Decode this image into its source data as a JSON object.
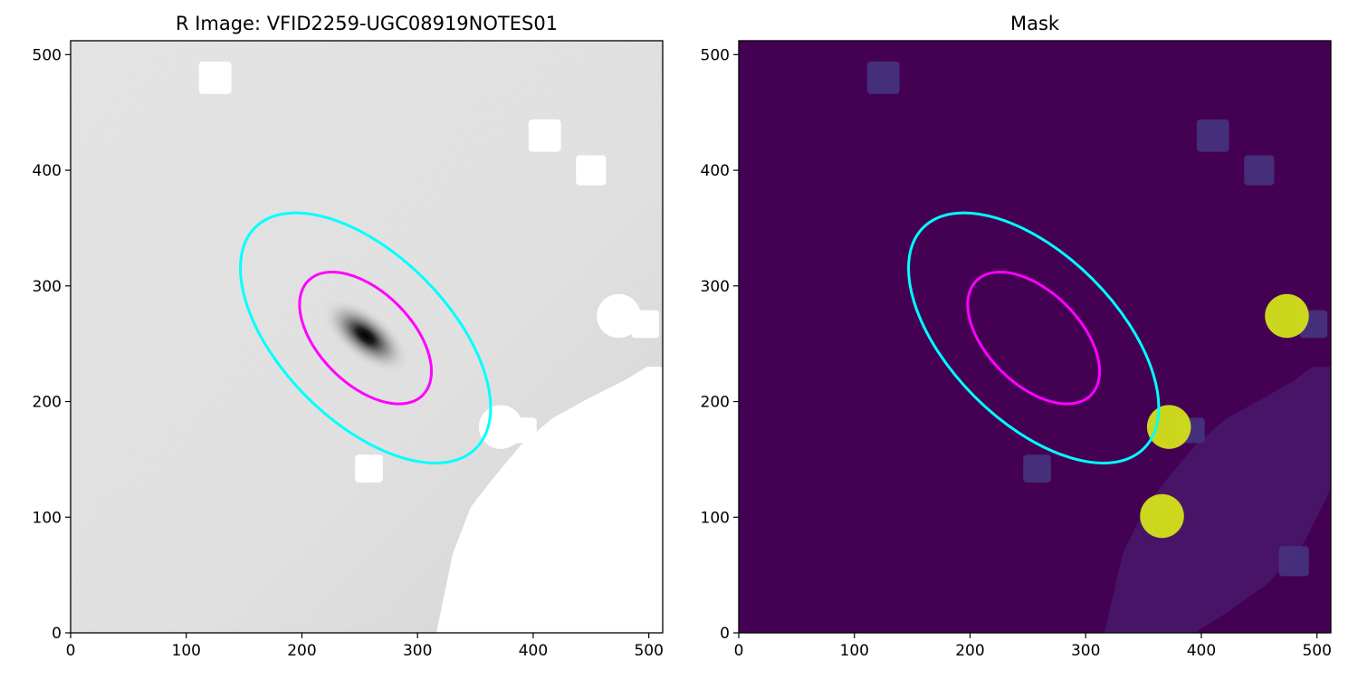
{
  "colors": {
    "cyan_ellipse": "#00ffff",
    "magenta_ellipse": "#ff00ff",
    "mask_background": "#440154",
    "mask_star_yellow": "#d4e21a",
    "mask_box_purple": "#46337e",
    "mask_stripe": "#481467"
  },
  "chart_data": [
    {
      "type": "image",
      "title": "R Image: VFID2259-UGC08919NOTES01",
      "colormap": "gray_r",
      "xlim": [
        0,
        512
      ],
      "ylim": [
        0,
        512
      ],
      "xticks": [
        0,
        100,
        200,
        300,
        400,
        500
      ],
      "yticks": [
        0,
        100,
        200,
        300,
        400,
        500
      ],
      "ellipses": [
        {
          "name": "outer",
          "color": "cyan",
          "center": [
            255,
            255
          ],
          "semi_axes": [
            135,
            72
          ],
          "angle_deg": -45
        },
        {
          "name": "inner",
          "color": "magenta",
          "center": [
            255,
            255
          ],
          "semi_axes": [
            70,
            40
          ],
          "angle_deg": -45
        }
      ],
      "masked_regions": [
        {
          "shape": "box",
          "center": [
            125,
            480
          ],
          "size": 28
        },
        {
          "shape": "box",
          "center": [
            410,
            430
          ],
          "size": 28
        },
        {
          "shape": "box",
          "center": [
            450,
            400
          ],
          "size": 26
        },
        {
          "shape": "box",
          "center": [
            258,
            142
          ],
          "size": 24
        },
        {
          "shape": "box",
          "center": [
            480,
            62
          ],
          "size": 26
        },
        {
          "shape": "box",
          "center": [
            497,
            267
          ],
          "size": 24
        },
        {
          "shape": "circle",
          "center": [
            474,
            274
          ],
          "r": 19
        },
        {
          "shape": "circle",
          "center": [
            372,
            178
          ],
          "r": 19
        },
        {
          "shape": "box",
          "center": [
            392,
            175
          ],
          "size": 22
        },
        {
          "shape": "circle",
          "center": [
            366,
            101
          ],
          "r": 19
        }
      ]
    },
    {
      "type": "image",
      "title": "Mask",
      "colormap": "viridis",
      "xlim": [
        0,
        512
      ],
      "ylim": [
        0,
        512
      ],
      "xticks": [
        0,
        100,
        200,
        300,
        400,
        500
      ],
      "yticks": [
        0,
        100,
        200,
        300,
        400,
        500
      ],
      "ellipses": [
        {
          "name": "outer",
          "color": "cyan",
          "center": [
            255,
            255
          ],
          "semi_axes": [
            135,
            72
          ],
          "angle_deg": -45
        },
        {
          "name": "inner",
          "color": "magenta",
          "center": [
            255,
            255
          ],
          "semi_axes": [
            70,
            40
          ],
          "angle_deg": -45
        }
      ],
      "mask_boxes": [
        {
          "center": [
            125,
            480
          ],
          "size": 28
        },
        {
          "center": [
            410,
            430
          ],
          "size": 28
        },
        {
          "center": [
            450,
            400
          ],
          "size": 26
        },
        {
          "center": [
            258,
            142
          ],
          "size": 24
        },
        {
          "center": [
            480,
            62
          ],
          "size": 26
        },
        {
          "center": [
            497,
            267
          ],
          "size": 24
        },
        {
          "center": [
            392,
            175
          ],
          "size": 22
        }
      ],
      "mask_stars": [
        {
          "center": [
            474,
            274
          ],
          "r": 19
        },
        {
          "center": [
            372,
            178
          ],
          "r": 19
        },
        {
          "center": [
            366,
            101
          ],
          "r": 19
        }
      ]
    }
  ]
}
